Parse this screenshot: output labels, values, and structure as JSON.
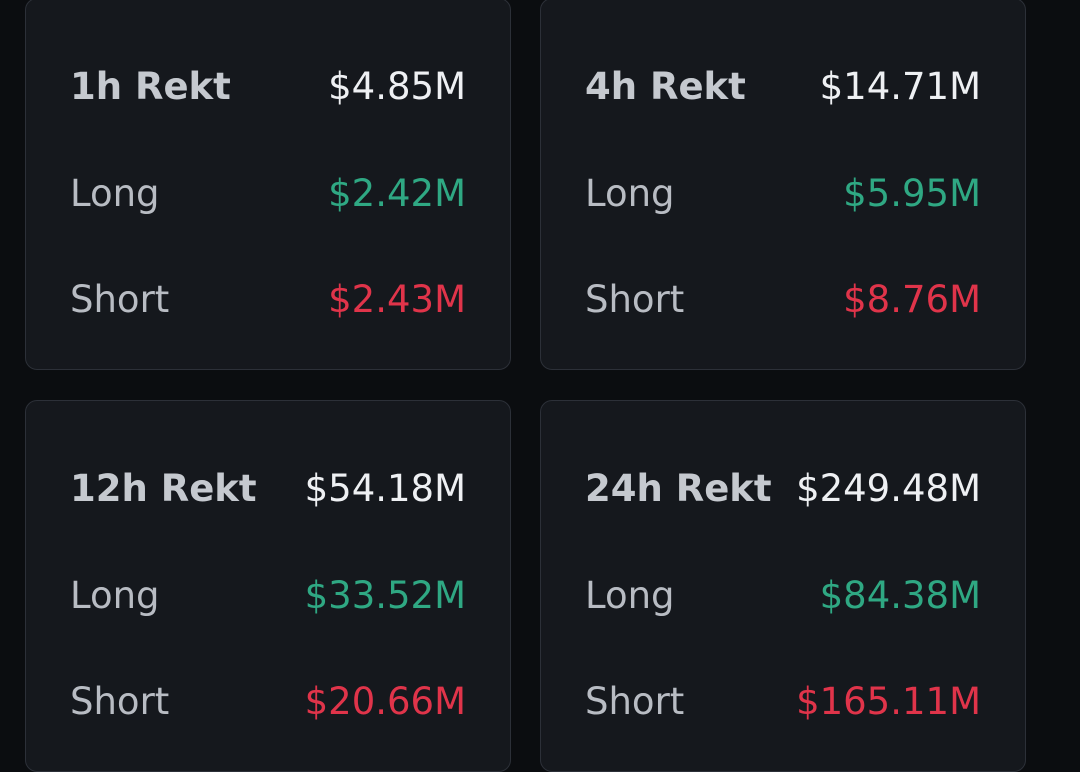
{
  "cards": [
    {
      "title": "1h Rekt",
      "total": "$4.85M",
      "rows": [
        {
          "label": "Long",
          "value": "$2.42M"
        },
        {
          "label": "Short",
          "value": "$2.43M"
        }
      ]
    },
    {
      "title": "4h Rekt",
      "total": "$14.71M",
      "rows": [
        {
          "label": "Long",
          "value": "$5.95M"
        },
        {
          "label": "Short",
          "value": "$8.76M"
        }
      ]
    },
    {
      "title": "12h Rekt",
      "total": "$54.18M",
      "rows": [
        {
          "label": "Long",
          "value": "$33.52M"
        },
        {
          "label": "Short",
          "value": "$20.66M"
        }
      ]
    },
    {
      "title": "24h Rekt",
      "total": "$249.48M",
      "rows": [
        {
          "label": "Long",
          "value": "$84.38M"
        },
        {
          "label": "Short",
          "value": "$165.11M"
        }
      ]
    }
  ]
}
